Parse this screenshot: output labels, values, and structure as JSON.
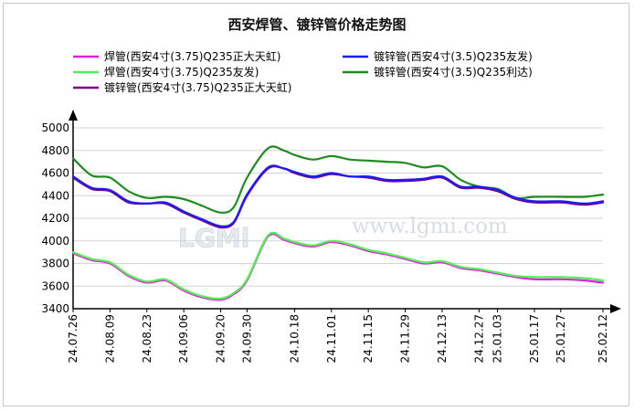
{
  "chart_data": {
    "type": "line",
    "title": "西安焊管、镀锌管价格走势图",
    "xlabel": "",
    "ylabel": "",
    "ylim": [
      3400,
      5000
    ],
    "yticks": [
      3400,
      3600,
      3800,
      4000,
      4200,
      4400,
      4600,
      4800,
      5000
    ],
    "grid": true,
    "legend_position": "top",
    "x_dates": [
      "24.07.26",
      "24.08.09",
      "24.08.23",
      "24.09.06",
      "24.09.20",
      "24.09.30",
      "24.10.18",
      "24.11.01",
      "24.11.15",
      "24.11.29",
      "24.12.13",
      "24.12.27",
      "25.01.03",
      "25.01.17",
      "25.01.27",
      "25.02.12"
    ],
    "watermark": "www.lgmi.com",
    "watermark_logo": "LGMi",
    "series": [
      {
        "name": "焊管(西安4寸(3.75)Q235正大天虹)",
        "color": "#e020e0",
        "points": [
          [
            "24.07.26",
            3890
          ],
          [
            "24.08.02",
            3830
          ],
          [
            "24.08.09",
            3800
          ],
          [
            "24.08.16",
            3690
          ],
          [
            "24.08.23",
            3630
          ],
          [
            "24.08.30",
            3650
          ],
          [
            "24.09.06",
            3560
          ],
          [
            "24.09.13",
            3500
          ],
          [
            "24.09.20",
            3480
          ],
          [
            "24.09.25",
            3530
          ],
          [
            "24.09.30",
            3650
          ],
          [
            "24.10.08",
            4040
          ],
          [
            "24.10.14",
            4010
          ],
          [
            "24.10.18",
            3980
          ],
          [
            "24.10.25",
            3950
          ],
          [
            "24.11.01",
            3990
          ],
          [
            "24.11.08",
            3960
          ],
          [
            "24.11.15",
            3910
          ],
          [
            "24.11.22",
            3880
          ],
          [
            "24.11.29",
            3840
          ],
          [
            "24.12.06",
            3800
          ],
          [
            "24.12.13",
            3810
          ],
          [
            "24.12.20",
            3760
          ],
          [
            "24.12.27",
            3740
          ],
          [
            "25.01.03",
            3710
          ],
          [
            "25.01.10",
            3680
          ],
          [
            "25.01.17",
            3660
          ],
          [
            "25.01.27",
            3660
          ],
          [
            "25.02.05",
            3650
          ],
          [
            "25.02.12",
            3630
          ]
        ]
      },
      {
        "name": "焊管(西安4寸(3.75)Q235友发)",
        "color": "#55ee55",
        "points": [
          [
            "24.07.26",
            3900
          ],
          [
            "24.08.02",
            3840
          ],
          [
            "24.08.09",
            3810
          ],
          [
            "24.08.16",
            3700
          ],
          [
            "24.08.23",
            3640
          ],
          [
            "24.08.30",
            3660
          ],
          [
            "24.09.06",
            3570
          ],
          [
            "24.09.13",
            3510
          ],
          [
            "24.09.20",
            3490
          ],
          [
            "24.09.25",
            3540
          ],
          [
            "24.09.30",
            3660
          ],
          [
            "24.10.08",
            4050
          ],
          [
            "24.10.14",
            4020
          ],
          [
            "24.10.18",
            3990
          ],
          [
            "24.10.25",
            3960
          ],
          [
            "24.11.01",
            4000
          ],
          [
            "24.11.08",
            3970
          ],
          [
            "24.11.15",
            3920
          ],
          [
            "24.11.22",
            3890
          ],
          [
            "24.11.29",
            3850
          ],
          [
            "24.12.06",
            3810
          ],
          [
            "24.12.13",
            3820
          ],
          [
            "24.12.20",
            3770
          ],
          [
            "24.12.27",
            3750
          ],
          [
            "25.01.03",
            3720
          ],
          [
            "25.01.10",
            3690
          ],
          [
            "25.01.17",
            3680
          ],
          [
            "25.01.27",
            3680
          ],
          [
            "25.02.05",
            3670
          ],
          [
            "25.02.12",
            3650
          ]
        ]
      },
      {
        "name": "镀锌管(西安4寸(3.75)Q235正大天虹)",
        "color": "#800080",
        "points": [
          [
            "24.07.26",
            4560
          ],
          [
            "24.08.02",
            4460
          ],
          [
            "24.08.09",
            4440
          ],
          [
            "24.08.16",
            4340
          ],
          [
            "24.08.23",
            4330
          ],
          [
            "24.08.30",
            4330
          ],
          [
            "24.09.06",
            4250
          ],
          [
            "24.09.13",
            4180
          ],
          [
            "24.09.20",
            4120
          ],
          [
            "24.09.25",
            4160
          ],
          [
            "24.09.30",
            4400
          ],
          [
            "24.10.08",
            4640
          ],
          [
            "24.10.14",
            4640
          ],
          [
            "24.10.18",
            4600
          ],
          [
            "24.10.25",
            4560
          ],
          [
            "24.11.01",
            4590
          ],
          [
            "24.11.08",
            4570
          ],
          [
            "24.11.15",
            4560
          ],
          [
            "24.11.22",
            4530
          ],
          [
            "24.11.29",
            4530
          ],
          [
            "24.12.06",
            4540
          ],
          [
            "24.12.13",
            4560
          ],
          [
            "24.12.20",
            4470
          ],
          [
            "24.12.27",
            4470
          ],
          [
            "25.01.03",
            4440
          ],
          [
            "25.01.10",
            4370
          ],
          [
            "25.01.17",
            4340
          ],
          [
            "25.01.27",
            4340
          ],
          [
            "25.02.05",
            4320
          ],
          [
            "25.02.12",
            4340
          ]
        ]
      },
      {
        "name": "镀锌管(西安4寸(3.5)Q235友发)",
        "color": "#1a1aff",
        "points": [
          [
            "24.07.26",
            4570
          ],
          [
            "24.08.02",
            4470
          ],
          [
            "24.08.09",
            4450
          ],
          [
            "24.08.16",
            4350
          ],
          [
            "24.08.23",
            4330
          ],
          [
            "24.08.30",
            4340
          ],
          [
            "24.09.06",
            4260
          ],
          [
            "24.09.13",
            4190
          ],
          [
            "24.09.20",
            4130
          ],
          [
            "24.09.25",
            4170
          ],
          [
            "24.09.30",
            4410
          ],
          [
            "24.10.08",
            4650
          ],
          [
            "24.10.14",
            4640
          ],
          [
            "24.10.18",
            4610
          ],
          [
            "24.10.25",
            4570
          ],
          [
            "24.11.01",
            4600
          ],
          [
            "24.11.08",
            4570
          ],
          [
            "24.11.15",
            4570
          ],
          [
            "24.11.22",
            4540
          ],
          [
            "24.11.29",
            4540
          ],
          [
            "24.12.06",
            4550
          ],
          [
            "24.12.13",
            4570
          ],
          [
            "24.12.20",
            4480
          ],
          [
            "24.12.27",
            4480
          ],
          [
            "25.01.03",
            4450
          ],
          [
            "25.01.10",
            4380
          ],
          [
            "25.01.17",
            4350
          ],
          [
            "25.01.27",
            4350
          ],
          [
            "25.02.05",
            4330
          ],
          [
            "25.02.12",
            4350
          ]
        ]
      },
      {
        "name": "镀锌管(西安4寸(3.5)Q235利达)",
        "color": "#1f8c1f",
        "points": [
          [
            "24.07.26",
            4730
          ],
          [
            "24.08.02",
            4580
          ],
          [
            "24.08.09",
            4560
          ],
          [
            "24.08.16",
            4440
          ],
          [
            "24.08.23",
            4380
          ],
          [
            "24.08.30",
            4390
          ],
          [
            "24.09.06",
            4370
          ],
          [
            "24.09.13",
            4310
          ],
          [
            "24.09.20",
            4250
          ],
          [
            "24.09.25",
            4300
          ],
          [
            "24.09.30",
            4560
          ],
          [
            "24.10.08",
            4820
          ],
          [
            "24.10.14",
            4800
          ],
          [
            "24.10.18",
            4760
          ],
          [
            "24.10.25",
            4720
          ],
          [
            "24.11.01",
            4750
          ],
          [
            "24.11.08",
            4720
          ],
          [
            "24.11.15",
            4710
          ],
          [
            "24.11.22",
            4700
          ],
          [
            "24.11.29",
            4690
          ],
          [
            "24.12.06",
            4650
          ],
          [
            "24.12.13",
            4660
          ],
          [
            "24.12.20",
            4540
          ],
          [
            "24.12.27",
            4480
          ],
          [
            "25.01.03",
            4460
          ],
          [
            "25.01.10",
            4380
          ],
          [
            "25.01.17",
            4390
          ],
          [
            "25.01.27",
            4390
          ],
          [
            "25.02.05",
            4390
          ],
          [
            "25.02.12",
            4410
          ]
        ]
      }
    ]
  }
}
